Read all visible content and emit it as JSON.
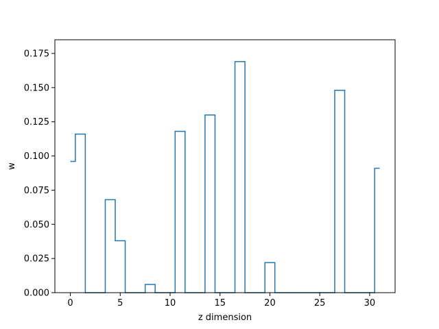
{
  "chart_data": {
    "type": "line",
    "drawstyle": "steps-mid",
    "xlabel": "z dimension",
    "ylabel": "w",
    "xlim": [
      -1.55,
      32.55
    ],
    "ylim": [
      0,
      0.185
    ],
    "xticks": [
      0,
      5,
      10,
      15,
      20,
      25,
      30
    ],
    "yticks": [
      0.0,
      0.025,
      0.05,
      0.075,
      0.1,
      0.125,
      0.15,
      0.175
    ],
    "ytick_labels": [
      "0.000",
      "0.025",
      "0.050",
      "0.075",
      "0.100",
      "0.125",
      "0.150",
      "0.175"
    ],
    "grid": false,
    "line_color": "#1f77b4",
    "x": [
      0,
      1,
      2,
      3,
      4,
      5,
      6,
      7,
      8,
      9,
      10,
      11,
      12,
      13,
      14,
      15,
      16,
      17,
      18,
      19,
      20,
      21,
      22,
      23,
      24,
      25,
      26,
      27,
      28,
      29,
      30,
      31
    ],
    "y": [
      0.096,
      0.116,
      0,
      0,
      0.068,
      0.038,
      0,
      0,
      0.006,
      0,
      0,
      0.118,
      0,
      0,
      0.13,
      0,
      0,
      0.169,
      0,
      0,
      0.022,
      0,
      0,
      0,
      0,
      0,
      0,
      0.148,
      0,
      0,
      0,
      0.091
    ]
  }
}
